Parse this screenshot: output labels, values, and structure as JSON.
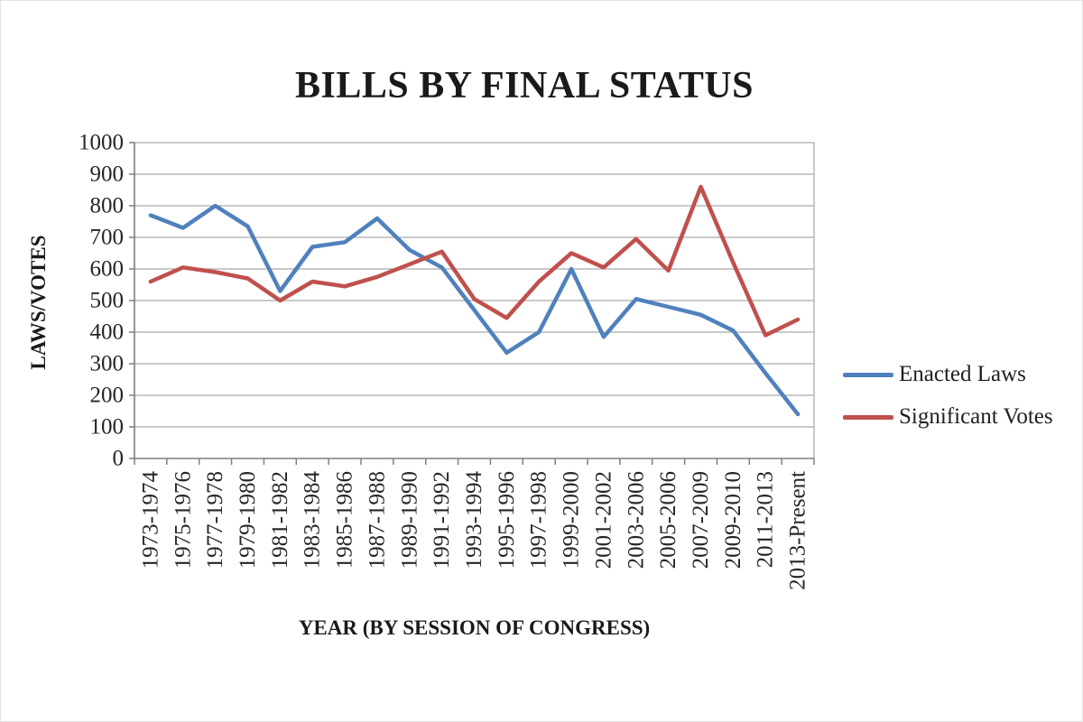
{
  "page": {
    "background_color": "#ffffff"
  },
  "chart_data": {
    "type": "line",
    "title": "BILLS BY FINAL STATUS",
    "xlabel": "YEAR (BY SESSION OF CONGRESS)",
    "ylabel": "LAWS/VOTES",
    "ylim": [
      0,
      1000
    ],
    "yticks": [
      0,
      100,
      200,
      300,
      400,
      500,
      600,
      700,
      800,
      900,
      1000
    ],
    "gridlines": "horizontal",
    "legend_position": "right",
    "categories": [
      "1973-1974",
      "1975-1976",
      "1977-1978",
      "1979-1980",
      "1981-1982",
      "1983-1984",
      "1985-1986",
      "1987-1988",
      "1989-1990",
      "1991-1992",
      "1993-1994",
      "1995-1996",
      "1997-1998",
      "1999-2000",
      "2001-2002",
      "2003-2006",
      "2005-2006",
      "2007-2009",
      "2009-2010",
      "2011-2013",
      "2013-Present"
    ],
    "series": [
      {
        "name": "Enacted Laws",
        "color": "#4F81BD",
        "values": [
          770,
          730,
          800,
          735,
          530,
          670,
          685,
          760,
          660,
          605,
          470,
          335,
          400,
          600,
          385,
          505,
          480,
          455,
          405,
          270,
          140
        ]
      },
      {
        "name": "Significant Votes",
        "color": "#C0504D",
        "values": [
          560,
          605,
          590,
          570,
          500,
          560,
          545,
          575,
          615,
          655,
          505,
          445,
          560,
          650,
          605,
          695,
          595,
          860,
          620,
          390,
          440
        ]
      }
    ]
  },
  "colors": {
    "gridline": "#ababab",
    "axis": "#7f7f7f",
    "tick_text": "#262626",
    "title_text": "#1a1a1a"
  }
}
